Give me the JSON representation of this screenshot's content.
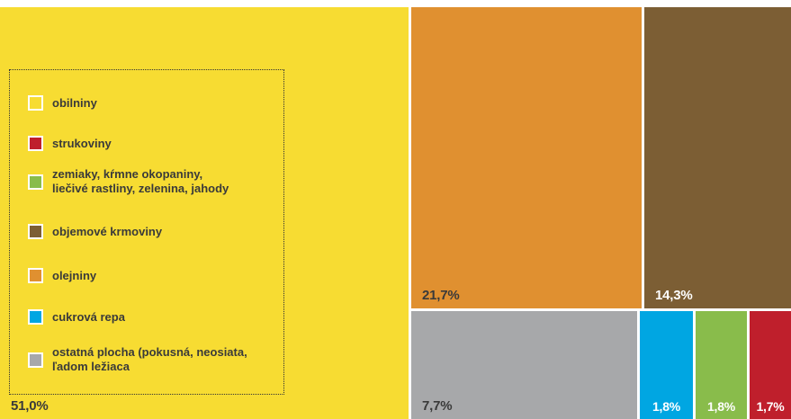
{
  "chart_data": {
    "type": "treemap",
    "title": "",
    "series": [
      {
        "name": "obilniny",
        "value": 51.0,
        "label": "51,0%",
        "color": "#f7dc32"
      },
      {
        "name": "olejniny",
        "value": 21.7,
        "label": "21,7%",
        "color": "#e09030"
      },
      {
        "name": "objemové krmoviny",
        "value": 14.3,
        "label": "14,3%",
        "color": "#7c5e34"
      },
      {
        "name": "ostatná plocha (pokusná, neosiata, ľadom ležiaca",
        "value": 7.7,
        "label": "7,7%",
        "color": "#a7a8aa"
      },
      {
        "name": "cukrová repa",
        "value": 1.8,
        "label": "1,8%",
        "color": "#00a6e2"
      },
      {
        "name": "zemiaky, krmne okopaniny, liečivé rastliny, zelenina, jahody",
        "value": 1.8,
        "label": "1,8%",
        "color": "#89bc4b"
      },
      {
        "name": "strukoviny",
        "value": 1.7,
        "label": "1,7%",
        "color": "#bf1f2c"
      }
    ]
  },
  "legend": {
    "items": [
      {
        "text": "obilniny",
        "color": "#f7dc32"
      },
      {
        "text": "strukoviny",
        "color": "#bf1f2c"
      },
      {
        "text": "zemiaky, kŕmne okopaniny,\nliečivé rastliny, zelenina, jahody",
        "color": "#89bc4b"
      },
      {
        "text": "objemové krmoviny",
        "color": "#7c5e34"
      },
      {
        "text": "olejniny",
        "color": "#e09030"
      },
      {
        "text": "cukrová repa",
        "color": "#00a6e2"
      },
      {
        "text": "ostatná plocha (pokusná, neosiata,\nľadom ležiaca",
        "color": "#a7a8aa"
      }
    ]
  }
}
